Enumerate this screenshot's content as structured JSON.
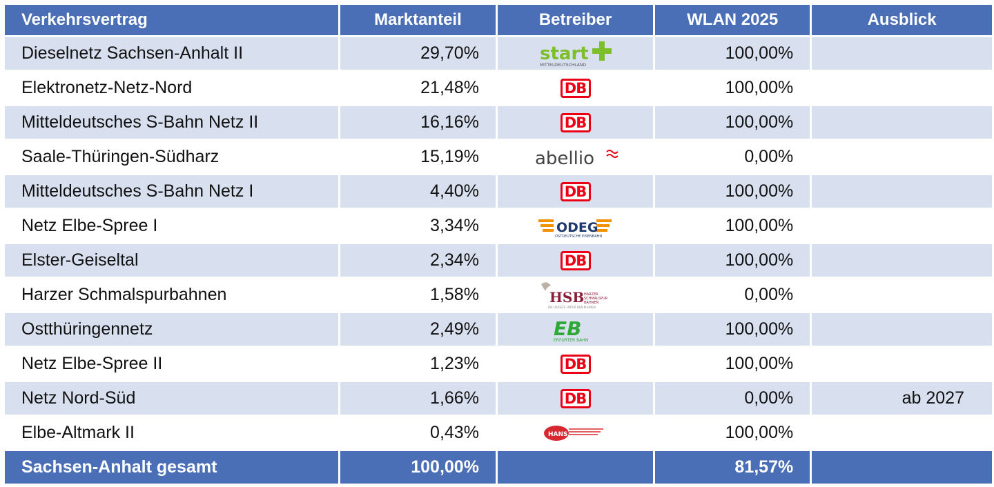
{
  "header": {
    "contract": "Verkehrsvertrag",
    "share": "Marktanteil",
    "operator": "Betreiber",
    "wlan": "WLAN 2025",
    "outlook": "Ausblick"
  },
  "rows": [
    {
      "contract": "Dieselnetz Sachsen-Anhalt II",
      "share": "29,70%",
      "operator_logo": "start-logo",
      "wlan": "100,00%",
      "outlook": ""
    },
    {
      "contract": "Elektronetz-Netz-Nord",
      "share": "21,48%",
      "operator_logo": "db-logo",
      "wlan": "100,00%",
      "outlook": ""
    },
    {
      "contract": "Mitteldeutsches S-Bahn Netz II",
      "share": "16,16%",
      "operator_logo": "db-logo",
      "wlan": "100,00%",
      "outlook": ""
    },
    {
      "contract": "Saale-Thüringen-Südharz",
      "share": "15,19%",
      "operator_logo": "abellio-logo",
      "wlan": "0,00%",
      "outlook": ""
    },
    {
      "contract": "Mitteldeutsches S-Bahn Netz I",
      "share": "4,40%",
      "operator_logo": "db-logo",
      "wlan": "100,00%",
      "outlook": ""
    },
    {
      "contract": "Netz Elbe-Spree I",
      "share": "3,34%",
      "operator_logo": "odeg-logo",
      "wlan": "100,00%",
      "outlook": ""
    },
    {
      "contract": "Elster-Geiseltal",
      "share": "2,34%",
      "operator_logo": "db-logo",
      "wlan": "100,00%",
      "outlook": ""
    },
    {
      "contract": "Harzer Schmalspurbahnen",
      "share": "1,58%",
      "operator_logo": "hsb-logo",
      "wlan": "0,00%",
      "outlook": ""
    },
    {
      "contract": "Ostthüringennetz",
      "share": "2,49%",
      "operator_logo": "eb-logo",
      "wlan": "100,00%",
      "outlook": ""
    },
    {
      "contract": "Netz Elbe-Spree II",
      "share": "1,23%",
      "operator_logo": "db-logo",
      "wlan": "100,00%",
      "outlook": ""
    },
    {
      "contract": "Netz Nord-Süd",
      "share": "1,66%",
      "operator_logo": "db-logo",
      "wlan": "0,00%",
      "outlook": "ab 2027"
    },
    {
      "contract": "Elbe-Altmark II",
      "share": "0,43%",
      "operator_logo": "hans-logo",
      "wlan": "100,00%",
      "outlook": ""
    }
  ],
  "total": {
    "contract": "Sachsen-Anhalt gesamt",
    "share": "100,00%",
    "wlan": "81,57%"
  },
  "logo_text": {
    "start": "start",
    "start_sub": "MITTELDEUTSCHLAND",
    "db": "DB",
    "abellio": "abellio",
    "odeg": "ODEG",
    "odeg_sub": "OSTDEUTSCHE EISENBAHN",
    "hsb": "HSB",
    "hsb_sub": "HARZER SCHMALSPUR BAHNEN",
    "hsb_tag": "DIE URIGSTE UNTER DEN KLEINEN",
    "eb": "EB",
    "eb_sub": "ERFURTER BAHN",
    "hans": "HANS"
  },
  "colors": {
    "header_bg": "#4a6fb6",
    "row_alt": "#d8dfee",
    "db_red": "#ec0016",
    "start_green": "#7dbf2a",
    "eb_green": "#2ea836",
    "odeg_orange": "#f29200",
    "odeg_blue": "#1f3a6e",
    "hsb_maroon": "#8a1f3a"
  }
}
